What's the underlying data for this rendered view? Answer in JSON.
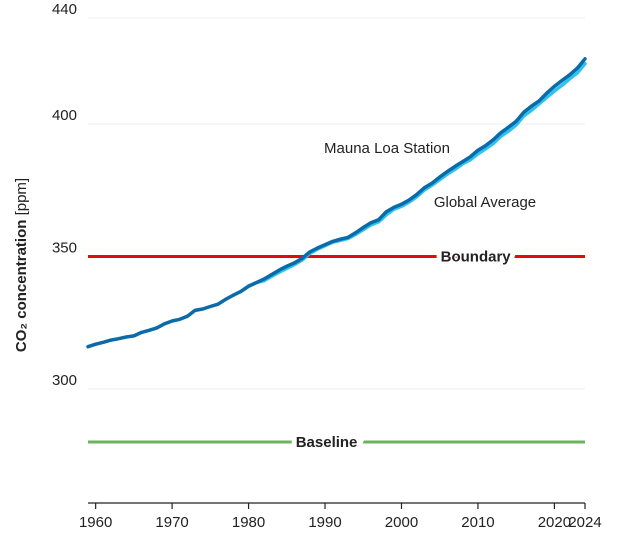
{
  "chart_data": {
    "type": "line",
    "y_label": {
      "main": "CO₂ concentration",
      "unit": "[ppm]"
    },
    "xlim": [
      1959,
      2024
    ],
    "xticks": [
      1960,
      1970,
      1980,
      1990,
      2000,
      2010,
      2020,
      2024
    ],
    "ylim": [
      257,
      440
    ],
    "yticks": [
      300,
      350,
      400,
      440
    ],
    "grid": true,
    "series": [
      {
        "name": "Global Average",
        "color": "#2cc3ef",
        "x": [
          1979,
          1980,
          1981,
          1982,
          1983,
          1984,
          1985,
          1986,
          1987,
          1988,
          1989,
          1990,
          1991,
          1992,
          1993,
          1994,
          1995,
          1996,
          1997,
          1998,
          1999,
          2000,
          2001,
          2002,
          2003,
          2004,
          2005,
          2006,
          2007,
          2008,
          2009,
          2010,
          2011,
          2012,
          2013,
          2014,
          2015,
          2016,
          2017,
          2018,
          2019,
          2020,
          2021,
          2022,
          2023,
          2024
        ],
        "values": [
          336.85,
          338.91,
          340.11,
          340.86,
          342.53,
          344.07,
          345.54,
          346.97,
          348.68,
          351.16,
          352.78,
          354.05,
          355.39,
          356.09,
          356.83,
          358.33,
          360.17,
          361.93,
          363.05,
          365.7,
          367.8,
          368.96,
          370.57,
          372.58,
          375.15,
          376.95,
          378.98,
          381.15,
          382.9,
          385.02,
          386.5,
          388.76,
          390.63,
          392.65,
          395.4,
          397.34,
          399.65,
          403.07,
          405.22,
          407.61,
          410.07,
          412.44,
          414.7,
          417.07,
          419.31,
          422.8
        ]
      },
      {
        "name": "Mauna Loa Station",
        "color": "#0b6aa8",
        "x": [
          1959,
          1960,
          1961,
          1962,
          1963,
          1964,
          1965,
          1966,
          1967,
          1968,
          1969,
          1970,
          1971,
          1972,
          1973,
          1974,
          1975,
          1976,
          1977,
          1978,
          1979,
          1980,
          1981,
          1982,
          1983,
          1984,
          1985,
          1986,
          1987,
          1988,
          1989,
          1990,
          1991,
          1992,
          1993,
          1994,
          1995,
          1996,
          1997,
          1998,
          1999,
          2000,
          2001,
          2002,
          2003,
          2004,
          2005,
          2006,
          2007,
          2008,
          2009,
          2010,
          2011,
          2012,
          2013,
          2014,
          2015,
          2016,
          2017,
          2018,
          2019,
          2020,
          2021,
          2022,
          2023,
          2024
        ],
        "values": [
          315.98,
          316.91,
          317.64,
          318.45,
          318.99,
          319.62,
          320.04,
          321.37,
          322.18,
          323.05,
          324.62,
          325.68,
          326.32,
          327.46,
          329.68,
          330.19,
          331.13,
          332.03,
          333.84,
          335.41,
          336.84,
          338.76,
          340.12,
          341.48,
          343.15,
          344.87,
          346.35,
          347.61,
          349.31,
          351.69,
          353.2,
          354.45,
          355.7,
          356.54,
          357.21,
          358.96,
          360.97,
          362.74,
          363.88,
          366.84,
          368.54,
          369.71,
          371.32,
          373.45,
          375.98,
          377.7,
          379.98,
          382.09,
          384.02,
          385.83,
          387.64,
          390.1,
          391.85,
          394.06,
          396.74,
          398.81,
          401.01,
          404.41,
          406.76,
          408.72,
          411.66,
          414.24,
          416.45,
          418.56,
          421.08,
          424.6
        ]
      }
    ],
    "reference_lines": [
      {
        "label": "Boundary",
        "value": 350,
        "color": "#e00b0b"
      },
      {
        "label": "Baseline",
        "value": 280,
        "color": "#6db35c"
      }
    ]
  }
}
